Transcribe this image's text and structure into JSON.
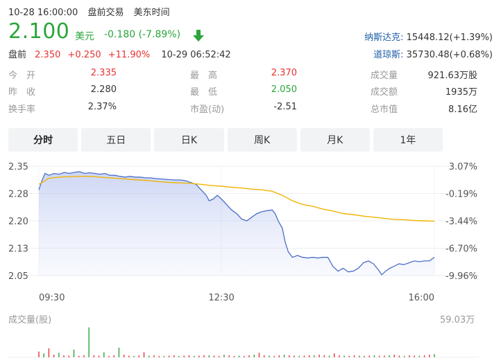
{
  "header": {
    "datetime": "10-28 16:00:00",
    "session": "盘前交易",
    "timezone": "美东时间"
  },
  "quote": {
    "price": "2.100",
    "currency": "美元",
    "change": "-0.180 (-7.89%)",
    "arrow_icon": "down-arrow-icon",
    "color_down": "#2aa53a",
    "color_up": "#e93030"
  },
  "premarket": {
    "label": "盘前",
    "price": "2.350",
    "change": "+0.250",
    "pct": "+11.90%",
    "time": "10-29 06:52:42"
  },
  "indices": [
    {
      "name": "纳斯达克:",
      "value": "15448.12(+1.39%)"
    },
    {
      "name": "道琼斯:",
      "value": "35730.48(+0.68%)"
    }
  ],
  "stats": [
    {
      "label": "今　开",
      "value": "2.335",
      "tone": "red"
    },
    {
      "label": "最　高",
      "value": "2.370",
      "tone": "red"
    },
    {
      "label": "成交量",
      "value": "921.63万股",
      "tone": "plain"
    },
    {
      "label": "昨　收",
      "value": "2.280",
      "tone": "plain"
    },
    {
      "label": "最　低",
      "value": "2.050",
      "tone": "green"
    },
    {
      "label": "成交额",
      "value": "1935万",
      "tone": "plain"
    },
    {
      "label": "换手率",
      "value": "2.37%",
      "tone": "plain"
    },
    {
      "label": "市盈(动)",
      "value": "-2.51",
      "tone": "plain"
    },
    {
      "label": "总市值",
      "value": "8.16亿",
      "tone": "plain"
    }
  ],
  "tabs": [
    "分时",
    "五日",
    "日K",
    "周K",
    "月K",
    "1年"
  ],
  "active_tab": 0,
  "chart_data": {
    "type": "line",
    "y_ticks_left": [
      "2.35",
      "2.28",
      "2.20",
      "2.13",
      "2.05"
    ],
    "y_ticks_right": [
      "3.07%",
      "-0.19%",
      "-3.44%",
      "-6.70%",
      "-9.96%"
    ],
    "x_ticks": [
      "09:30",
      "12:30",
      "16:00"
    ],
    "ylim": [
      2.05,
      2.35
    ],
    "xlim_minutes": [
      0,
      390
    ],
    "grid": true,
    "series": [
      {
        "color": "#4b6fc9",
        "fill": true,
        "points": [
          [
            0,
            2.285
          ],
          [
            3,
            2.31
          ],
          [
            6,
            2.33
          ],
          [
            10,
            2.325
          ],
          [
            15,
            2.33
          ],
          [
            20,
            2.328
          ],
          [
            25,
            2.333
          ],
          [
            30,
            2.33
          ],
          [
            35,
            2.333
          ],
          [
            40,
            2.335
          ],
          [
            45,
            2.33
          ],
          [
            50,
            2.332
          ],
          [
            55,
            2.33
          ],
          [
            60,
            2.328
          ],
          [
            65,
            2.33
          ],
          [
            70,
            2.325
          ],
          [
            75,
            2.325
          ],
          [
            80,
            2.322
          ],
          [
            85,
            2.32
          ],
          [
            90,
            2.322
          ],
          [
            95,
            2.32
          ],
          [
            100,
            2.32
          ],
          [
            105,
            2.318
          ],
          [
            110,
            2.318
          ],
          [
            115,
            2.316
          ],
          [
            120,
            2.315
          ],
          [
            125,
            2.314
          ],
          [
            130,
            2.313
          ],
          [
            135,
            2.312
          ],
          [
            140,
            2.312
          ],
          [
            145,
            2.31
          ],
          [
            150,
            2.305
          ],
          [
            155,
            2.3
          ],
          [
            160,
            2.285
          ],
          [
            165,
            2.27
          ],
          [
            168,
            2.255
          ],
          [
            172,
            2.26
          ],
          [
            176,
            2.27
          ],
          [
            180,
            2.26
          ],
          [
            185,
            2.245
          ],
          [
            190,
            2.23
          ],
          [
            195,
            2.22
          ],
          [
            200,
            2.205
          ],
          [
            205,
            2.2
          ],
          [
            210,
            2.21
          ],
          [
            215,
            2.22
          ],
          [
            220,
            2.225
          ],
          [
            225,
            2.228
          ],
          [
            230,
            2.23
          ],
          [
            233,
            2.22
          ],
          [
            236,
            2.2
          ],
          [
            240,
            2.18
          ],
          [
            243,
            2.14
          ],
          [
            246,
            2.115
          ],
          [
            250,
            2.1
          ],
          [
            255,
            2.105
          ],
          [
            260,
            2.1
          ],
          [
            265,
            2.098
          ],
          [
            270,
            2.1
          ],
          [
            275,
            2.098
          ],
          [
            280,
            2.1
          ],
          [
            285,
            2.1
          ],
          [
            290,
            2.075
          ],
          [
            295,
            2.062
          ],
          [
            300,
            2.07
          ],
          [
            305,
            2.06
          ],
          [
            310,
            2.062
          ],
          [
            315,
            2.07
          ],
          [
            320,
            2.085
          ],
          [
            325,
            2.09
          ],
          [
            330,
            2.082
          ],
          [
            335,
            2.065
          ],
          [
            338,
            2.052
          ],
          [
            342,
            2.062
          ],
          [
            346,
            2.07
          ],
          [
            350,
            2.075
          ],
          [
            355,
            2.082
          ],
          [
            360,
            2.08
          ],
          [
            365,
            2.085
          ],
          [
            370,
            2.09
          ],
          [
            375,
            2.088
          ],
          [
            380,
            2.09
          ],
          [
            385,
            2.09
          ],
          [
            390,
            2.1
          ]
        ]
      },
      {
        "color": "#f0b400",
        "fill": false,
        "points": [
          [
            0,
            2.3
          ],
          [
            10,
            2.317
          ],
          [
            20,
            2.32
          ],
          [
            30,
            2.321
          ],
          [
            40,
            2.322
          ],
          [
            50,
            2.322
          ],
          [
            60,
            2.32
          ],
          [
            70,
            2.318
          ],
          [
            80,
            2.316
          ],
          [
            90,
            2.314
          ],
          [
            100,
            2.312
          ],
          [
            110,
            2.31
          ],
          [
            120,
            2.307
          ],
          [
            130,
            2.305
          ],
          [
            140,
            2.304
          ],
          [
            150,
            2.303
          ],
          [
            160,
            2.3
          ],
          [
            170,
            2.297
          ],
          [
            180,
            2.295
          ],
          [
            190,
            2.292
          ],
          [
            200,
            2.29
          ],
          [
            210,
            2.287
          ],
          [
            220,
            2.285
          ],
          [
            230,
            2.281
          ],
          [
            240,
            2.27
          ],
          [
            250,
            2.255
          ],
          [
            260,
            2.245
          ],
          [
            270,
            2.24
          ],
          [
            280,
            2.232
          ],
          [
            290,
            2.227
          ],
          [
            300,
            2.22
          ],
          [
            310,
            2.217
          ],
          [
            320,
            2.213
          ],
          [
            330,
            2.21
          ],
          [
            340,
            2.207
          ],
          [
            350,
            2.204
          ],
          [
            360,
            2.203
          ],
          [
            370,
            2.201
          ],
          [
            380,
            2.2
          ],
          [
            390,
            2.199
          ]
        ]
      }
    ],
    "volume": {
      "label": "成交量(股)",
      "max_label": "59.03万",
      "max": 590300,
      "values": [
        90000,
        60000,
        140000,
        40000,
        70000,
        30000,
        25000,
        120000,
        20000,
        30000,
        470000,
        30000,
        25000,
        80000,
        20000,
        30000,
        150000,
        40000,
        25000,
        20000,
        30000,
        80000,
        25000,
        30000,
        20000,
        20000,
        25000,
        30000,
        20000,
        25000,
        30000,
        20000,
        25000,
        30000,
        30000,
        25000,
        20000,
        40000,
        30000,
        20000,
        25000,
        20000,
        30000,
        40000,
        70000,
        30000,
        25000,
        20000,
        30000,
        40000,
        30000,
        25000,
        20000,
        25000,
        30000,
        30000,
        40000,
        30000,
        25000,
        60000,
        30000,
        25000,
        20000,
        30000,
        25000,
        20000,
        25000,
        30000,
        20000,
        25000,
        30000,
        40000,
        25000,
        20000,
        30000,
        25000,
        20000,
        30000,
        40000,
        50000
      ]
    }
  }
}
